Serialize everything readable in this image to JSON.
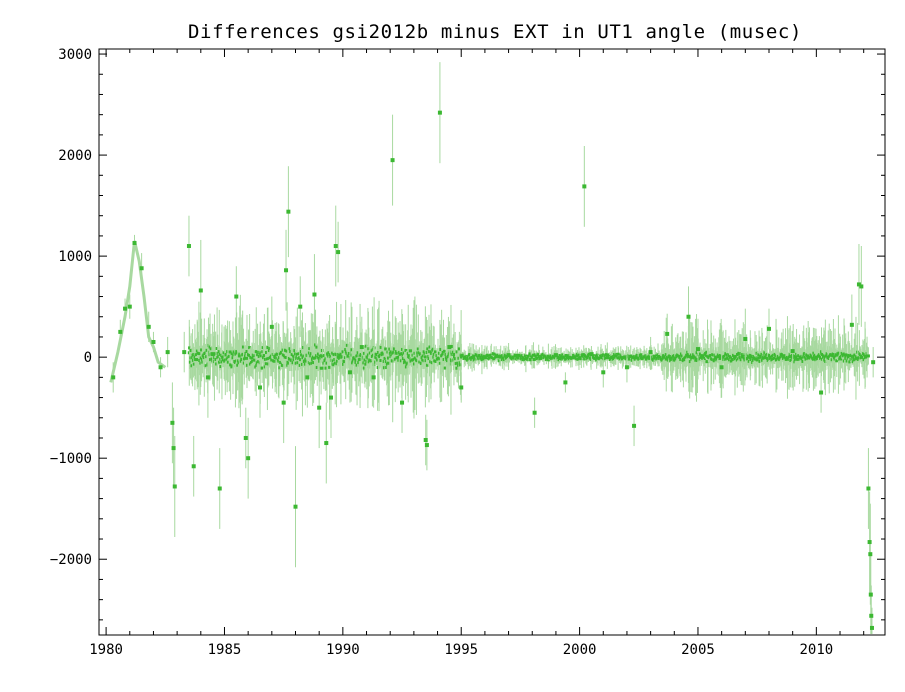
{
  "chart_data": {
    "type": "scatter",
    "title": "Differences gsi2012b minus EXT in UT1 angle   (musec)",
    "xlabel": "",
    "ylabel": "",
    "xlim": [
      1979.7,
      2012.9
    ],
    "ylim": [
      -2750,
      3050
    ],
    "x_ticks": [
      1980,
      1985,
      1990,
      1995,
      2000,
      2005,
      2010
    ],
    "x_tick_labels": [
      "1980",
      "1985",
      "1990",
      "1995",
      "2000",
      "2005",
      "2010"
    ],
    "y_ticks": [
      -2000,
      -1000,
      0,
      1000,
      2000,
      3000
    ],
    "y_tick_labels": [
      "−2000",
      "−1000",
      "0",
      "1000",
      "2000",
      "3000"
    ],
    "grid": false,
    "legend": "none",
    "colors": {
      "points": "#3cb832",
      "error_bars": "#a8d9a0",
      "frame": "#000000"
    },
    "series": [
      {
        "values": [
          {
            "x": 1980.3,
            "y": -200,
            "err": 150
          },
          {
            "x": 1980.6,
            "y": 250,
            "err": 120
          },
          {
            "x": 1980.8,
            "y": 480,
            "err": 100
          },
          {
            "x": 1981.0,
            "y": 500,
            "err": 120
          },
          {
            "x": 1981.2,
            "y": 1130,
            "err": 80
          },
          {
            "x": 1981.5,
            "y": 880,
            "err": 150
          },
          {
            "x": 1981.8,
            "y": 300,
            "err": 150
          },
          {
            "x": 1982.0,
            "y": 150,
            "err": 100
          },
          {
            "x": 1982.3,
            "y": -100,
            "err": 100
          },
          {
            "x": 1982.6,
            "y": 50,
            "err": 150
          },
          {
            "x": 1982.8,
            "y": -650,
            "err": 400
          },
          {
            "x": 1982.85,
            "y": -900,
            "err": 400
          },
          {
            "x": 1982.9,
            "y": -1280,
            "err": 500
          },
          {
            "x": 1983.3,
            "y": 50,
            "err": 200
          },
          {
            "x": 1983.5,
            "y": 1100,
            "err": 300
          },
          {
            "x": 1983.7,
            "y": -1080,
            "err": 300
          },
          {
            "x": 1984.0,
            "y": 660,
            "err": 500
          },
          {
            "x": 1984.3,
            "y": -200,
            "err": 400
          },
          {
            "x": 1984.5,
            "y": 30,
            "err": 300
          },
          {
            "x": 1984.8,
            "y": -1300,
            "err": 400
          },
          {
            "x": 1985.5,
            "y": 600,
            "err": 300
          },
          {
            "x": 1985.9,
            "y": -800,
            "err": 300
          },
          {
            "x": 1986.0,
            "y": -1000,
            "err": 400
          },
          {
            "x": 1986.5,
            "y": -300,
            "err": 300
          },
          {
            "x": 1987.0,
            "y": 300,
            "err": 300
          },
          {
            "x": 1987.5,
            "y": -450,
            "err": 400
          },
          {
            "x": 1987.7,
            "y": 1440,
            "err": 450
          },
          {
            "x": 1987.6,
            "y": 860,
            "err": 400
          },
          {
            "x": 1988.0,
            "y": -1480,
            "err": 600
          },
          {
            "x": 1988.2,
            "y": 500,
            "err": 300
          },
          {
            "x": 1988.5,
            "y": -200,
            "err": 300
          },
          {
            "x": 1988.8,
            "y": 620,
            "err": 400
          },
          {
            "x": 1989.0,
            "y": -500,
            "err": 400
          },
          {
            "x": 1989.3,
            "y": -850,
            "err": 400
          },
          {
            "x": 1989.5,
            "y": -400,
            "err": 400
          },
          {
            "x": 1989.7,
            "y": 1100,
            "err": 400
          },
          {
            "x": 1989.8,
            "y": 1040,
            "err": 300
          },
          {
            "x": 1990.3,
            "y": -150,
            "err": 300
          },
          {
            "x": 1990.8,
            "y": 100,
            "err": 300
          },
          {
            "x": 1991.3,
            "y": -200,
            "err": 300
          },
          {
            "x": 1992.1,
            "y": 1950,
            "err": 450
          },
          {
            "x": 1992.5,
            "y": -450,
            "err": 300
          },
          {
            "x": 1993.5,
            "y": -820,
            "err": 250
          },
          {
            "x": 1993.55,
            "y": -870,
            "err": 250
          },
          {
            "x": 1994.1,
            "y": 2420,
            "err": 500
          },
          {
            "x": 1994.5,
            "y": 100,
            "err": 200
          },
          {
            "x": 1995.0,
            "y": -300,
            "err": 150
          },
          {
            "x": 1996.0,
            "y": 0,
            "err": 80
          },
          {
            "x": 1997.0,
            "y": 20,
            "err": 80
          },
          {
            "x": 1998.1,
            "y": -550,
            "err": 150
          },
          {
            "x": 1999.0,
            "y": 20,
            "err": 80
          },
          {
            "x": 1999.4,
            "y": -250,
            "err": 100
          },
          {
            "x": 2000.2,
            "y": 1690,
            "err": 400
          },
          {
            "x": 2000.5,
            "y": 30,
            "err": 80
          },
          {
            "x": 2001.0,
            "y": -150,
            "err": 150
          },
          {
            "x": 2002.0,
            "y": -100,
            "err": 150
          },
          {
            "x": 2002.3,
            "y": -680,
            "err": 200
          },
          {
            "x": 2003.0,
            "y": 50,
            "err": 150
          },
          {
            "x": 2003.7,
            "y": 230,
            "err": 200
          },
          {
            "x": 2004.6,
            "y": 400,
            "err": 300
          },
          {
            "x": 2005.0,
            "y": 80,
            "err": 300
          },
          {
            "x": 2006.0,
            "y": -100,
            "err": 300
          },
          {
            "x": 2007.0,
            "y": 180,
            "err": 300
          },
          {
            "x": 2008.0,
            "y": 280,
            "err": 200
          },
          {
            "x": 2009.0,
            "y": 60,
            "err": 200
          },
          {
            "x": 2010.2,
            "y": -350,
            "err": 200
          },
          {
            "x": 2011.5,
            "y": 320,
            "err": 300
          },
          {
            "x": 2011.8,
            "y": 720,
            "err": 400
          },
          {
            "x": 2011.9,
            "y": 700,
            "err": 400
          },
          {
            "x": 2012.2,
            "y": -1300,
            "err": 400
          },
          {
            "x": 2012.25,
            "y": -1830,
            "err": 500
          },
          {
            "x": 2012.28,
            "y": -1950,
            "err": 500
          },
          {
            "x": 2012.3,
            "y": -2350,
            "err": 400
          },
          {
            "x": 2012.32,
            "y": -2560,
            "err": 300
          },
          {
            "x": 2012.35,
            "y": -2680,
            "err": 200
          },
          {
            "x": 2012.4,
            "y": -50,
            "err": 150
          }
        ]
      }
    ],
    "dense_band": {
      "note": "dense cluster of points around zero",
      "segments": [
        {
          "x_start": 1983.5,
          "x_end": 1995.0,
          "y_spread": 150,
          "err": 350,
          "count": 520
        },
        {
          "x_start": 1995.0,
          "y_spread": 40,
          "x_end": 2003.5,
          "err": 90,
          "count": 380
        },
        {
          "x_start": 2003.5,
          "x_end": 2012.2,
          "y_spread": 60,
          "err": 250,
          "count": 440
        }
      ]
    },
    "early_curve": {
      "x": [
        1980.2,
        1980.5,
        1980.8,
        1981.0,
        1981.2,
        1981.4,
        1981.6,
        1981.8,
        1982.0,
        1982.2,
        1982.5
      ],
      "y": [
        -250,
        50,
        400,
        700,
        1150,
        950,
        600,
        200,
        100,
        -50,
        -100
      ]
    }
  }
}
